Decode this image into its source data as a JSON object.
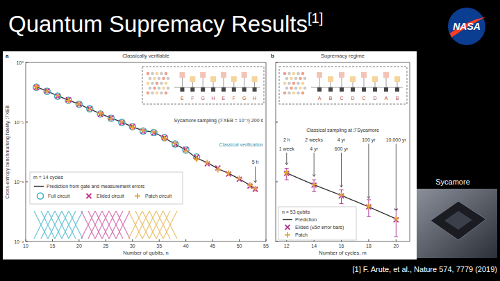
{
  "slide": {
    "title": "Quantum Supremacy Results",
    "title_ref": "[1]",
    "logo_text": "NASA",
    "image_caption": "Sycamore",
    "reference": "[1] F. Arute, et al., Nature 574, 7779 (2019)"
  },
  "chart_data": [
    {
      "type": "scatter",
      "panel_label": "a",
      "title": "Classically verifiable",
      "x_label": "Number of qubits, n",
      "y_label": "Cross-entropy benchmarking fidelity, ℱXEB",
      "log": "y",
      "grid": false,
      "legend": "lower left",
      "legend_title": "m = 14 cycles",
      "xlim": [
        10,
        55
      ],
      "xticks": [
        10,
        15,
        20,
        25,
        30,
        35,
        40,
        45,
        50,
        55
      ],
      "ylim": [
        0.001,
        1
      ],
      "yticks": [
        {
          "value": 0.001,
          "label": "10⁻³"
        },
        {
          "value": 0.01,
          "label": "10⁻²"
        },
        {
          "value": 0.1,
          "label": "10⁻¹"
        },
        {
          "value": 1,
          "label": "10⁰"
        }
      ],
      "circuit_labels": [
        "E",
        "F",
        "G",
        "H",
        "E",
        "F",
        "G",
        "H"
      ],
      "sycamore_note": "Sycamore sampling (ℱXEB = 10⁻²) 200 s",
      "verification_note": "Classical verification",
      "time_note": {
        "text": "5 h",
        "x": 53
      },
      "series": [
        {
          "name": "Prediction from gate and measurement errors",
          "type": "line",
          "color": "#333333",
          "marker": "none",
          "line_style": "solid",
          "x": [
            12,
            14,
            16,
            18,
            20,
            22,
            24,
            26,
            28,
            30,
            32,
            34,
            36,
            38,
            40,
            42,
            44,
            46,
            48,
            50,
            52,
            53
          ],
          "values": [
            0.389,
            0.331,
            0.275,
            0.234,
            0.2,
            0.166,
            0.138,
            0.117,
            0.1,
            0.083,
            0.072,
            0.068,
            0.054,
            0.043,
            0.034,
            0.025,
            0.021,
            0.0166,
            0.0138,
            0.0112,
            0.0087,
            0.0076
          ]
        },
        {
          "name": "Full circuit",
          "type": "scatter",
          "color": "#3fb0c9",
          "marker": "circle",
          "line_style": "none",
          "x": [
            12,
            14,
            16,
            18,
            20,
            22,
            24,
            26,
            28,
            30,
            32,
            34,
            36,
            38,
            40,
            42
          ],
          "values": [
            0.385,
            0.328,
            0.272,
            0.232,
            0.199,
            0.167,
            0.137,
            0.116,
            0.099,
            0.084,
            0.071,
            0.067,
            0.055,
            0.043,
            0.034,
            0.026
          ]
        },
        {
          "name": "Elided circuit",
          "type": "scatter",
          "color": "#c4338f",
          "marker": "x",
          "line_style": "none",
          "x": [
            12,
            14,
            16,
            18,
            20,
            22,
            24,
            26,
            28,
            30,
            32,
            34,
            36,
            38,
            40,
            42,
            44,
            46,
            48,
            50,
            52,
            53
          ],
          "values": [
            0.38,
            0.335,
            0.27,
            0.236,
            0.198,
            0.168,
            0.135,
            0.118,
            0.098,
            0.085,
            0.07,
            0.066,
            0.055,
            0.042,
            0.035,
            0.026,
            0.02,
            0.017,
            0.0135,
            0.011,
            0.0085,
            0.0075
          ]
        },
        {
          "name": "Patch circuit",
          "type": "scatter",
          "color": "#e3a33a",
          "marker": "plus",
          "line_style": "none",
          "x": [
            12,
            14,
            16,
            18,
            20,
            22,
            24,
            26,
            28,
            30,
            32,
            34,
            36,
            38,
            40,
            42,
            44,
            46,
            48,
            50,
            52,
            53
          ],
          "values": [
            0.39,
            0.33,
            0.278,
            0.23,
            0.202,
            0.164,
            0.14,
            0.115,
            0.101,
            0.082,
            0.073,
            0.069,
            0.053,
            0.044,
            0.033,
            0.024,
            0.021,
            0.016,
            0.014,
            0.0114,
            0.0088,
            0.0077
          ]
        }
      ]
    },
    {
      "type": "scatter",
      "panel_label": "b",
      "title": "Supremacy regime",
      "x_label": "Number of cycles, m",
      "log": "y",
      "grid": false,
      "legend": "lower left",
      "legend_title": "n = 53 qubits",
      "tick_labels": "x",
      "xlim": [
        11.2,
        21
      ],
      "xticks": [
        12,
        14,
        16,
        18,
        20
      ],
      "ylim": [
        0.001,
        1
      ],
      "yticks": [
        0.001,
        0.01,
        0.1,
        1
      ],
      "circuit_labels": [
        "A",
        "B",
        "C",
        "D",
        "C",
        "D",
        "A",
        "B"
      ],
      "annotation_title": "Classical sampling at ℱSycamore",
      "annotations": [
        {
          "text": "2 h",
          "x": 12
        },
        {
          "text": "1 week",
          "x": 12
        },
        {
          "text": "2 weeks",
          "x": 14
        },
        {
          "text": "4 yr",
          "x": 14
        },
        {
          "text": "4 yr",
          "x": 16
        },
        {
          "text": "600 yr",
          "x": 16
        },
        {
          "text": "100 yr",
          "x": 18
        },
        {
          "text": "10,000 yr",
          "x": 20
        }
      ],
      "series": [
        {
          "name": "Prediction",
          "type": "line",
          "color": "#333333",
          "marker": "none",
          "line_style": "solid",
          "x": [
            12,
            14,
            16,
            18,
            20
          ],
          "values": [
            0.014,
            0.0089,
            0.0059,
            0.0038,
            0.0024
          ]
        },
        {
          "name": "Elided (±5σ error bars)",
          "type": "scatter",
          "color": "#b03c96",
          "marker": "x",
          "line_style": "none",
          "x": [
            12,
            14,
            16,
            18,
            20
          ],
          "values": [
            0.0138,
            0.0088,
            0.0058,
            0.0038,
            0.0023
          ],
          "errors": [
            0.003,
            0.002,
            0.0015,
            0.0012,
            0.0011
          ]
        },
        {
          "name": "Patch",
          "type": "scatter",
          "color": "#e3a33a",
          "marker": "plus",
          "line_style": "none",
          "x": [
            12,
            14,
            16,
            18,
            20
          ],
          "values": [
            0.0142,
            0.009,
            0.006,
            0.0039,
            0.0024
          ]
        }
      ]
    }
  ]
}
